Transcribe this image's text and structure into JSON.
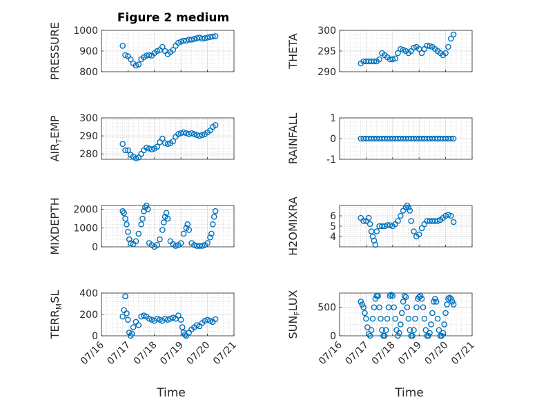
{
  "figure": {
    "title": "Figure 2 medium"
  },
  "style": {
    "marker_color": "#0072bd",
    "axis_color": "#262626",
    "grid_color": "#c8c8c8"
  },
  "chart_data": [
    {
      "type": "scatter",
      "ylabel": "PRESSURE",
      "xlabel": "",
      "ylim": [
        800,
        1000
      ],
      "yticks": [
        800,
        900,
        1000
      ],
      "xticks": [
        "07/16",
        "07/17",
        "07/18",
        "07/19",
        "07/20",
        "07/21"
      ],
      "x": [
        16.8,
        16.9,
        17.0,
        17.1,
        17.2,
        17.3,
        17.4,
        17.5,
        17.6,
        17.7,
        17.8,
        17.9,
        18.0,
        18.1,
        18.2,
        18.3,
        18.4,
        18.5,
        18.6,
        18.7,
        18.8,
        18.9,
        19.0,
        19.1,
        19.2,
        19.3,
        19.4,
        19.5,
        19.6,
        19.7,
        19.8,
        19.9,
        20.0,
        20.1,
        20.2,
        20.3
      ],
      "y": [
        925,
        880,
        875,
        860,
        840,
        830,
        835,
        860,
        870,
        878,
        880,
        878,
        890,
        900,
        905,
        920,
        900,
        885,
        895,
        905,
        925,
        940,
        945,
        950,
        950,
        955,
        955,
        958,
        962,
        965,
        960,
        962,
        965,
        968,
        970,
        972
      ]
    },
    {
      "type": "scatter",
      "ylabel": "THETA",
      "xlabel": "",
      "ylim": [
        290,
        300
      ],
      "yticks": [
        290,
        295,
        300
      ],
      "xticks": [
        "07/16",
        "07/17",
        "07/18",
        "07/19",
        "07/20",
        "07/21"
      ],
      "x": [
        16.8,
        16.9,
        17.0,
        17.1,
        17.2,
        17.3,
        17.4,
        17.5,
        17.6,
        17.7,
        17.8,
        17.9,
        18.0,
        18.1,
        18.2,
        18.3,
        18.4,
        18.5,
        18.6,
        18.7,
        18.8,
        18.9,
        19.0,
        19.1,
        19.2,
        19.3,
        19.4,
        19.5,
        19.6,
        19.7,
        19.8,
        19.9,
        20.0,
        20.1,
        20.2,
        20.3
      ],
      "y": [
        292,
        292.5,
        292.5,
        292.5,
        292.5,
        292.5,
        292.5,
        293,
        294.5,
        294,
        293.5,
        293,
        293,
        293.2,
        294.5,
        295.5,
        295.3,
        295,
        294.5,
        295,
        295.8,
        296,
        295.5,
        294.5,
        295.5,
        296.3,
        296.2,
        296,
        295.5,
        295,
        294.5,
        294,
        294.5,
        296,
        298,
        299
      ]
    },
    {
      "type": "scatter",
      "ylabel": "AIR_TEMP",
      "xlabel": "",
      "ylim": [
        277,
        300
      ],
      "yticks": [
        280,
        290,
        300
      ],
      "xticks": [
        "07/16",
        "07/17",
        "07/18",
        "07/19",
        "07/20",
        "07/21"
      ],
      "x": [
        16.8,
        16.9,
        17.0,
        17.1,
        17.2,
        17.3,
        17.4,
        17.5,
        17.6,
        17.7,
        17.8,
        17.9,
        18.0,
        18.1,
        18.2,
        18.3,
        18.4,
        18.5,
        18.6,
        18.7,
        18.8,
        18.9,
        19.0,
        19.1,
        19.2,
        19.3,
        19.4,
        19.5,
        19.6,
        19.7,
        19.8,
        19.9,
        20.0,
        20.1,
        20.2,
        20.3
      ],
      "y": [
        285.5,
        282,
        282,
        279.5,
        278.5,
        277.5,
        278,
        280,
        282,
        283.5,
        283,
        282.5,
        283,
        284,
        286.5,
        288.5,
        286,
        285.5,
        286,
        287,
        289.5,
        291,
        291.5,
        292,
        291.5,
        291,
        291.5,
        291,
        290.5,
        290,
        290.5,
        291,
        292,
        293,
        295,
        296
      ]
    },
    {
      "type": "scatter",
      "ylabel": "RAINFALL",
      "xlabel": "",
      "ylim": [
        -1,
        1
      ],
      "yticks": [
        -1,
        0,
        1
      ],
      "xticks": [
        "07/16",
        "07/17",
        "07/18",
        "07/19",
        "07/20",
        "07/21"
      ],
      "x": [
        16.8,
        16.9,
        17.0,
        17.1,
        17.2,
        17.3,
        17.4,
        17.5,
        17.6,
        17.7,
        17.8,
        17.9,
        18.0,
        18.1,
        18.2,
        18.3,
        18.4,
        18.5,
        18.6,
        18.7,
        18.8,
        18.9,
        19.0,
        19.1,
        19.2,
        19.3,
        19.4,
        19.5,
        19.6,
        19.7,
        19.8,
        19.9,
        20.0,
        20.1,
        20.2,
        20.3
      ],
      "y": [
        0,
        0,
        0,
        0,
        0,
        0,
        0,
        0,
        0,
        0,
        0,
        0,
        0,
        0,
        0,
        0,
        0,
        0,
        0,
        0,
        0,
        0,
        0,
        0,
        0,
        0,
        0,
        0,
        0,
        0,
        0,
        0,
        0,
        0,
        0,
        0
      ]
    },
    {
      "type": "scatter",
      "ylabel": "MIXDEPTH",
      "xlabel": "",
      "ylim": [
        0,
        2200
      ],
      "yticks": [
        0,
        1000,
        2000
      ],
      "xticks": [
        "07/16",
        "07/17",
        "07/18",
        "07/19",
        "07/20",
        "07/21"
      ],
      "x": [
        16.8,
        16.85,
        16.9,
        16.95,
        17.0,
        17.05,
        17.1,
        17.2,
        17.3,
        17.4,
        17.5,
        17.55,
        17.6,
        17.65,
        17.7,
        17.75,
        17.8,
        17.9,
        18.0,
        18.1,
        18.2,
        18.3,
        18.35,
        18.4,
        18.45,
        18.5,
        18.6,
        18.7,
        18.8,
        18.9,
        19.0,
        19.1,
        19.2,
        19.25,
        19.3,
        19.4,
        19.5,
        19.6,
        19.7,
        19.8,
        19.9,
        20.0,
        20.1,
        20.15,
        20.2,
        20.25,
        20.3
      ],
      "y": [
        1900,
        1800,
        1500,
        1200,
        800,
        400,
        200,
        150,
        300,
        700,
        1200,
        1500,
        1900,
        2100,
        2200,
        2000,
        200,
        100,
        0,
        100,
        400,
        900,
        1300,
        1600,
        1800,
        1500,
        300,
        150,
        50,
        100,
        200,
        700,
        1000,
        1200,
        900,
        200,
        100,
        50,
        50,
        50,
        100,
        200,
        500,
        700,
        1200,
        1600,
        1900
      ]
    },
    {
      "type": "scatter",
      "ylabel": "H2OMIXRA",
      "xlabel": "",
      "ylim": [
        3,
        7
      ],
      "yticks": [
        4,
        5,
        6
      ],
      "xticks": [
        "07/16",
        "07/17",
        "07/18",
        "07/19",
        "07/20",
        "07/21"
      ],
      "x": [
        16.8,
        16.9,
        17.0,
        17.1,
        17.15,
        17.2,
        17.25,
        17.3,
        17.35,
        17.4,
        17.5,
        17.6,
        17.7,
        17.8,
        17.9,
        18.0,
        18.1,
        18.2,
        18.3,
        18.4,
        18.5,
        18.55,
        18.6,
        18.65,
        18.7,
        18.8,
        18.9,
        19.0,
        19.1,
        19.2,
        19.3,
        19.4,
        19.5,
        19.6,
        19.7,
        19.8,
        19.9,
        20.0,
        20.1,
        20.2,
        20.3
      ],
      "y": [
        5.8,
        5.5,
        5.5,
        5.8,
        5.2,
        4.5,
        4.0,
        3.6,
        3.2,
        4.5,
        5.0,
        5.0,
        5.0,
        5.1,
        5.1,
        5.0,
        5.2,
        5.5,
        6.0,
        6.5,
        6.8,
        7.0,
        6.8,
        6.5,
        5.5,
        4.5,
        4.0,
        4.2,
        4.8,
        5.2,
        5.5,
        5.5,
        5.5,
        5.5,
        5.5,
        5.6,
        5.8,
        6.0,
        6.1,
        6.0,
        5.4
      ]
    },
    {
      "type": "scatter",
      "ylabel": "TERR_MSL",
      "xlabel": "Time",
      "ylim": [
        0,
        400
      ],
      "yticks": [
        0,
        200,
        400
      ],
      "xticks": [
        "07/16",
        "07/17",
        "07/18",
        "07/19",
        "07/20",
        "07/21"
      ],
      "x": [
        16.8,
        16.85,
        16.9,
        16.95,
        17.0,
        17.05,
        17.1,
        17.15,
        17.2,
        17.3,
        17.4,
        17.5,
        17.6,
        17.7,
        17.8,
        17.9,
        18.0,
        18.1,
        18.2,
        18.3,
        18.4,
        18.5,
        18.6,
        18.7,
        18.8,
        18.9,
        19.0,
        19.05,
        19.1,
        19.15,
        19.2,
        19.3,
        19.4,
        19.5,
        19.6,
        19.7,
        19.8,
        19.9,
        20.0,
        20.1,
        20.2,
        20.3
      ],
      "y": [
        180,
        240,
        370,
        210,
        150,
        30,
        0,
        20,
        80,
        130,
        100,
        180,
        190,
        180,
        160,
        150,
        140,
        160,
        150,
        140,
        160,
        150,
        160,
        170,
        160,
        190,
        150,
        80,
        30,
        10,
        0,
        30,
        60,
        80,
        100,
        90,
        120,
        140,
        150,
        140,
        130,
        155
      ]
    },
    {
      "type": "scatter",
      "ylabel": "SUN_FLUX",
      "xlabel": "Time",
      "ylim": [
        0,
        750
      ],
      "yticks": [
        0,
        500
      ],
      "xticks": [
        "07/16",
        "07/17",
        "07/18",
        "07/19",
        "07/20",
        "07/21"
      ],
      "x": [
        16.8,
        16.85,
        16.9,
        16.95,
        17.0,
        17.05,
        17.1,
        17.15,
        17.2,
        17.25,
        17.3,
        17.35,
        17.4,
        17.45,
        17.5,
        17.55,
        17.6,
        17.65,
        17.7,
        17.75,
        17.8,
        17.85,
        17.9,
        17.95,
        18.0,
        18.05,
        18.1,
        18.15,
        18.2,
        18.25,
        18.3,
        18.35,
        18.4,
        18.45,
        18.5,
        18.55,
        18.6,
        18.65,
        18.7,
        18.75,
        18.8,
        18.85,
        18.9,
        18.95,
        19.0,
        19.05,
        19.1,
        19.15,
        19.2,
        19.25,
        19.3,
        19.35,
        19.4,
        19.45,
        19.5,
        19.55,
        19.6,
        19.65,
        19.7,
        19.75,
        19.8,
        19.85,
        19.9,
        19.95,
        20.0,
        20.05,
        20.1,
        20.15,
        20.2,
        20.25,
        20.3
      ],
      "y": [
        600,
        550,
        500,
        400,
        300,
        150,
        30,
        0,
        100,
        300,
        500,
        650,
        700,
        700,
        500,
        300,
        100,
        0,
        0,
        100,
        300,
        500,
        700,
        720,
        700,
        500,
        300,
        100,
        0,
        50,
        200,
        400,
        600,
        700,
        680,
        500,
        300,
        100,
        0,
        0,
        100,
        300,
        500,
        650,
        680,
        700,
        650,
        500,
        300,
        100,
        0,
        0,
        50,
        200,
        400,
        600,
        650,
        600,
        300,
        100,
        0,
        0,
        50,
        200,
        400,
        550,
        650,
        670,
        650,
        600,
        550
      ]
    }
  ]
}
